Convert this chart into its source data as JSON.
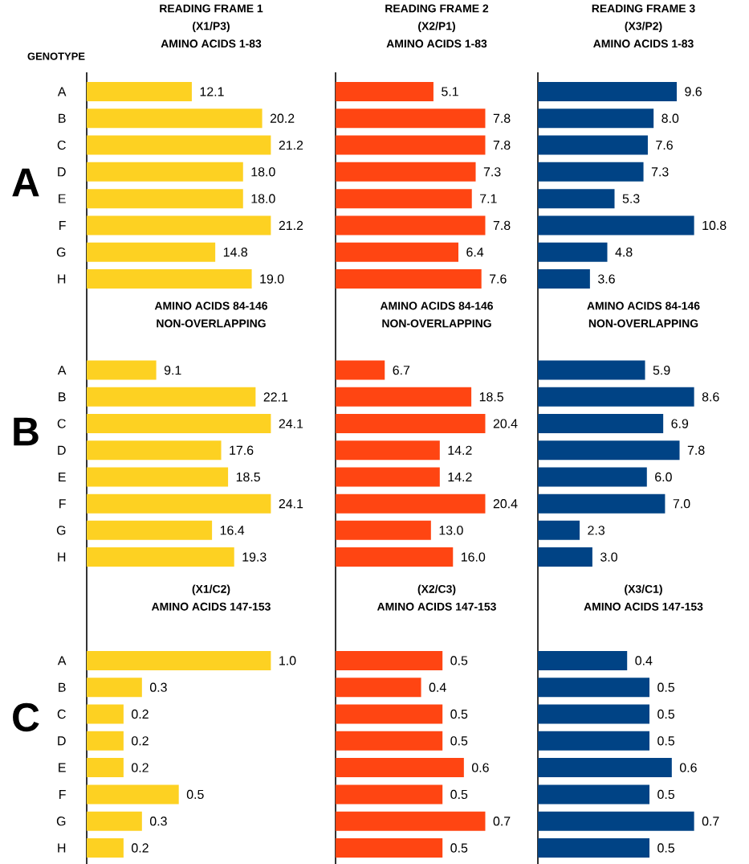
{
  "chart_data": [
    {
      "type": "bar",
      "orientation": "horizontal",
      "title": "READING FRAME 1",
      "subtitle": "(X1/P3)",
      "annotations": [
        "AMINO ACIDS 1-83"
      ],
      "ylabel": "A",
      "categories": [
        "A",
        "B",
        "C",
        "D",
        "E",
        "F",
        "G",
        "H"
      ],
      "values": [
        12.1,
        20.2,
        21.2,
        18.0,
        18.0,
        21.2,
        14.8,
        19.0
      ],
      "value_labels": [
        "12.1",
        "20.2",
        "21.2",
        "18.0",
        "18.0",
        "21.2",
        "14.8",
        "19.0"
      ],
      "color": "#fdd122",
      "tick_labels": "y"
    },
    {
      "type": "bar",
      "orientation": "horizontal",
      "title": "READING FRAME 2",
      "subtitle": "(X2/P1)",
      "annotations": [
        "AMINO ACIDS 1-83"
      ],
      "categories": [
        null,
        null,
        null,
        null,
        null,
        null,
        null,
        null
      ],
      "values": [
        5.1,
        7.8,
        7.8,
        7.3,
        7.1,
        7.8,
        6.4,
        7.6
      ],
      "value_labels": [
        "5.1",
        "7.8",
        "7.8",
        "7.3",
        "7.1",
        "7.8",
        "6.4",
        "7.6"
      ],
      "color": "#ff4512",
      "tick_labels": false
    },
    {
      "type": "bar",
      "orientation": "horizontal",
      "title": "READING FRAME 3",
      "subtitle": "(X3/P2)",
      "annotations": [
        "AMINO ACIDS 1-83"
      ],
      "categories": [
        null,
        null,
        null,
        null,
        null,
        null,
        null,
        null
      ],
      "values": [
        9.6,
        8.0,
        7.6,
        7.3,
        5.3,
        10.8,
        4.8,
        3.6
      ],
      "value_labels": [
        "9.6",
        "8.0",
        "7.6",
        "7.3",
        "5.3",
        "10.8",
        "4.8",
        "3.6"
      ],
      "color": "#004385",
      "tick_labels": false
    },
    {
      "type": "bar",
      "orientation": "horizontal",
      "title": "AMINO ACIDS 84-146",
      "subtitle": "NON-OVERLAPPING",
      "ylabel": "B",
      "categories": [
        "A",
        "B",
        "C",
        "D",
        "E",
        "F",
        "G",
        "H"
      ],
      "values": [
        9.1,
        22.1,
        24.1,
        17.6,
        18.5,
        24.1,
        16.4,
        19.3
      ],
      "value_labels": [
        "9.1",
        "22.1",
        "24.1",
        "17.6",
        "18.5",
        "24.1",
        "16.4",
        "19.3"
      ],
      "color": "#fdd122",
      "tick_labels": "y"
    },
    {
      "type": "bar",
      "orientation": "horizontal",
      "title": "AMINO ACIDS 84-146",
      "subtitle": "NON-OVERLAPPING",
      "categories": [
        null,
        null,
        null,
        null,
        null,
        null,
        null,
        null
      ],
      "values": [
        6.7,
        18.5,
        20.4,
        14.2,
        14.2,
        20.4,
        13.0,
        16.0
      ],
      "value_labels": [
        "6.7",
        "18.5",
        "20.4",
        "14.2",
        "14.2",
        "20.4",
        "13.0",
        "16.0"
      ],
      "color": "#ff4512",
      "tick_labels": false
    },
    {
      "type": "bar",
      "orientation": "horizontal",
      "title": "AMINO ACIDS 84-146",
      "subtitle": "NON-OVERLAPPING",
      "categories": [
        null,
        null,
        null,
        null,
        null,
        null,
        null,
        null
      ],
      "values": [
        5.9,
        8.6,
        6.9,
        7.8,
        6.0,
        7.0,
        2.3,
        3.0
      ],
      "value_labels": [
        "5.9",
        "8.6",
        "6.9",
        "7.8",
        "6.0",
        "7.0",
        "2.3",
        "3.0"
      ],
      "color": "#004385",
      "tick_labels": false
    },
    {
      "type": "bar",
      "orientation": "horizontal",
      "title": "(X1/C2)",
      "subtitle": "AMINO ACIDS 147-153",
      "ylabel": "C",
      "categories": [
        "A",
        "B",
        "C",
        "D",
        "E",
        "F",
        "G",
        "H"
      ],
      "values": [
        1.0,
        0.3,
        0.2,
        0.2,
        0.2,
        0.5,
        0.3,
        0.2
      ],
      "value_labels": [
        "1.0",
        "0.3",
        "0.2",
        "0.2",
        "0.2",
        "0.5",
        "0.3",
        "0.2"
      ],
      "color": "#fdd122",
      "tick_labels": "y"
    },
    {
      "type": "bar",
      "orientation": "horizontal",
      "title": "(X2/C3)",
      "subtitle": "AMINO ACIDS 147-153",
      "categories": [
        null,
        null,
        null,
        null,
        null,
        null,
        null,
        null
      ],
      "values": [
        0.5,
        0.4,
        0.5,
        0.5,
        0.6,
        0.5,
        0.7,
        0.5
      ],
      "value_labels": [
        "0.5",
        "0.4",
        "0.5",
        "0.5",
        "0.6",
        "0.5",
        "0.7",
        "0.5"
      ],
      "color": "#ff4512",
      "tick_labels": false
    },
    {
      "type": "bar",
      "orientation": "horizontal",
      "title": "(X3/C1)",
      "subtitle": "AMINO ACIDS 147-153",
      "categories": [
        null,
        null,
        null,
        null,
        null,
        null,
        null,
        null
      ],
      "values": [
        0.4,
        0.5,
        0.5,
        0.5,
        0.6,
        0.5,
        0.7,
        0.5
      ],
      "value_labels": [
        "0.4",
        "0.5",
        "0.5",
        "0.5",
        "0.6",
        "0.5",
        "0.7",
        "0.5"
      ],
      "color": "#004385",
      "tick_labels": false
    },
    {
      "type": "other",
      "title": "GENOTYPE"
    }
  ]
}
